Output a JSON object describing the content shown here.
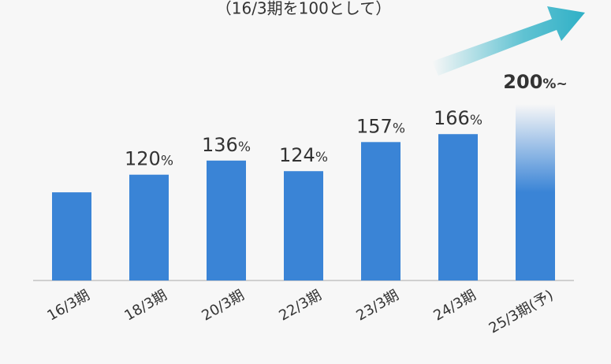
{
  "chart_data": {
    "type": "bar",
    "subtitle": "（16/3期を100として）",
    "categories": [
      "16/3期",
      "18/3期",
      "20/3期",
      "22/3期",
      "23/3期",
      "24/3期",
      "25/3期(予)"
    ],
    "values": [
      100,
      120,
      136,
      124,
      157,
      166,
      200
    ],
    "value_labels": [
      null,
      "120%",
      "136%",
      "124%",
      "157%",
      "166%",
      "200%~"
    ],
    "color": "#3a84d6",
    "ylim": [
      0,
      210
    ]
  }
}
